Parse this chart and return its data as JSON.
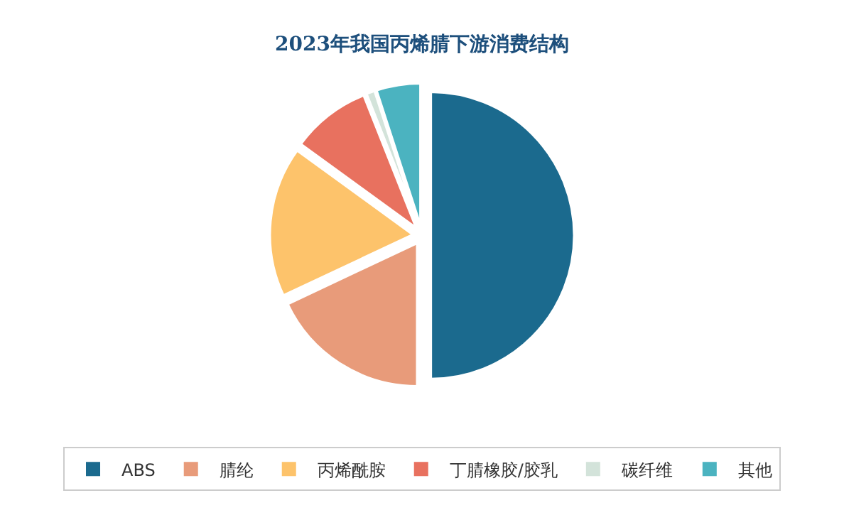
{
  "chart_data": {
    "type": "pie",
    "title": "2023年我国丙烯腈下游消费结构",
    "categories": [
      "ABS",
      "腈纶",
      "丙烯酰胺",
      "丁腈橡胶/胶乳",
      "碳纤维",
      "其他"
    ],
    "values": [
      50,
      18,
      17,
      9,
      1,
      5
    ],
    "colors": [
      "#1b6a8e",
      "#e89b7a",
      "#fdc36b",
      "#e8715f",
      "#d3e3da",
      "#4bb3c0"
    ],
    "legend": "bottom"
  }
}
